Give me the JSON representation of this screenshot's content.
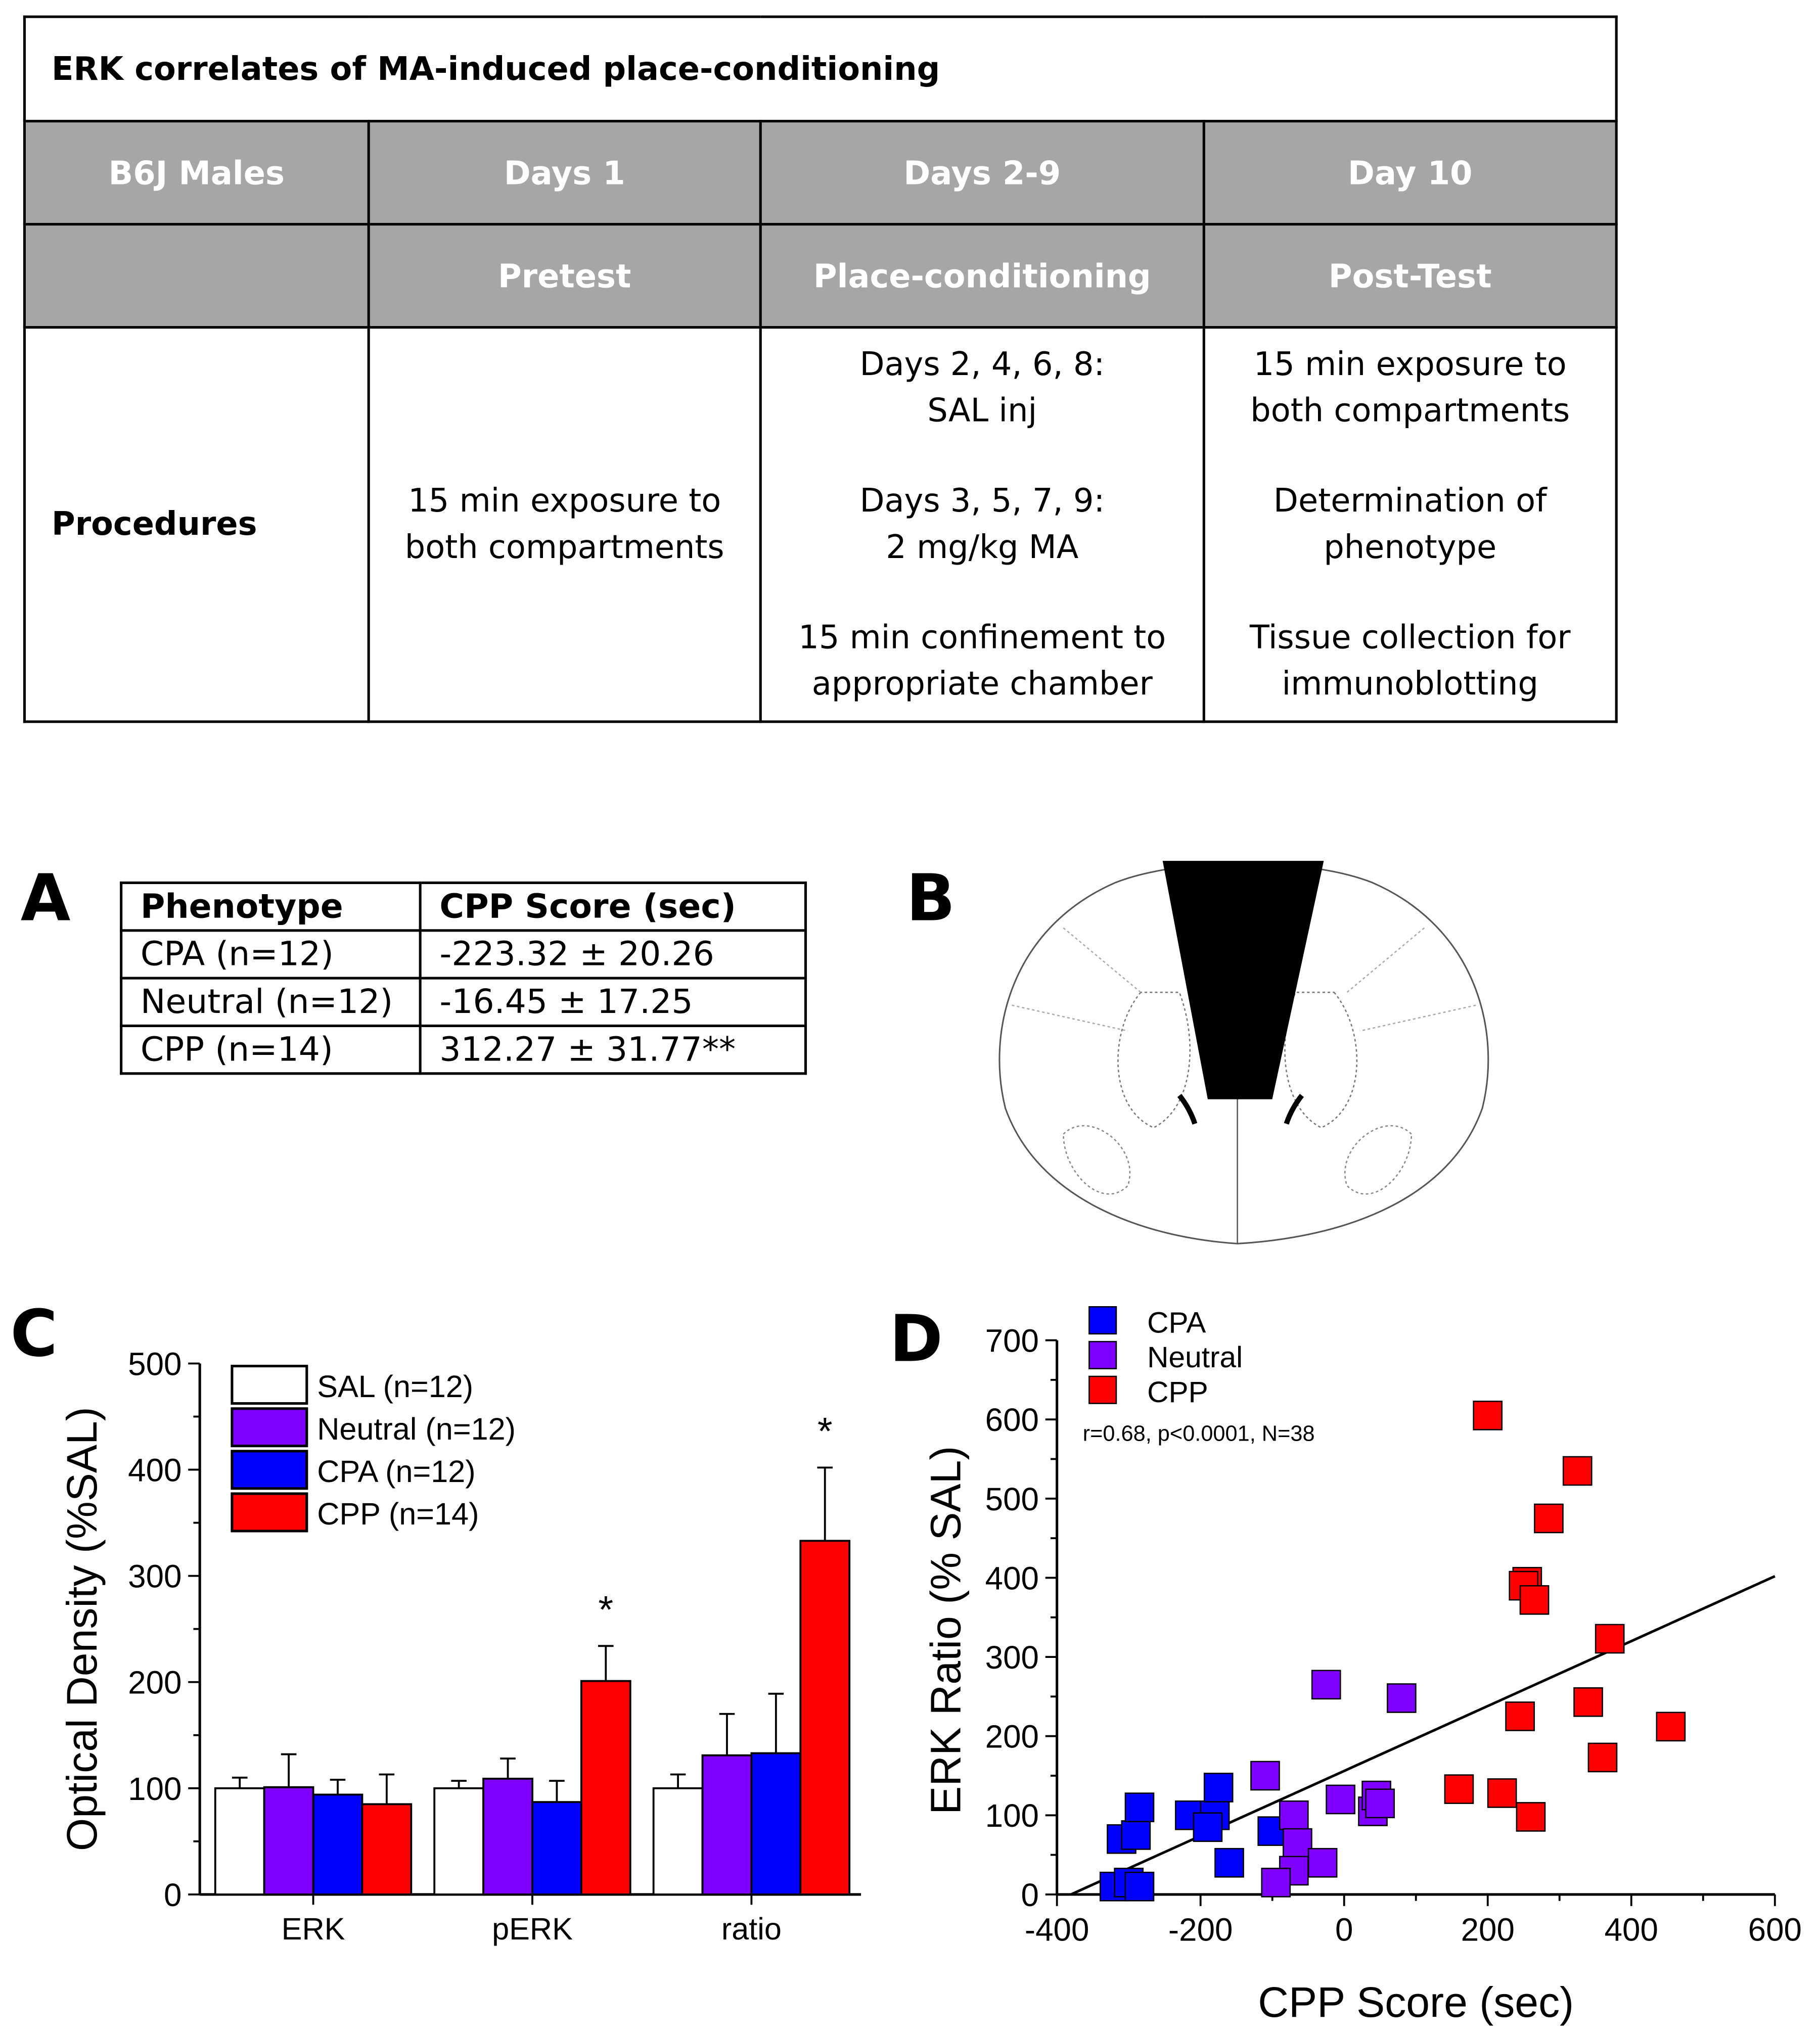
{
  "protocol": {
    "title": "ERK correlates of MA-induced place-conditioning",
    "header_row1": [
      "B6J Males",
      "Days 1",
      "Days 2-9",
      "Day 10"
    ],
    "header_row2": [
      "",
      "Pretest",
      "Place-conditioning",
      "Post-Test"
    ],
    "row_label": "Procedures",
    "pretest": [
      "15 min exposure to both compartments"
    ],
    "conditioning": [
      "Days 2, 4, 6, 8:|SAL inj",
      "Days 3, 5, 7, 9:|2 mg/kg MA",
      "15 min confinement to|appropriate chamber"
    ],
    "posttest": [
      "15 min exposure to|both compartments",
      "Determination of|phenotype",
      "Tissue collection for|immunoblotting"
    ]
  },
  "panel_labels": {
    "a": "A",
    "b": "B",
    "c": "C",
    "d": "D"
  },
  "phenotype_table": {
    "headers": [
      "Phenotype",
      "CPP Score (sec)"
    ],
    "rows": [
      [
        "CPA (n=12)",
        "-223.32 ± 20.26"
      ],
      [
        "Neutral (n=12)",
        "-16.45 ± 17.25"
      ],
      [
        "CPP (n=14)",
        "312.27 ± 31.77**"
      ]
    ]
  },
  "colors": {
    "sal": "#ffffff",
    "neutral": "#7f00ff",
    "cpa": "#0000ff",
    "cpp": "#ff0000"
  },
  "chart_data": [
    {
      "type": "bar",
      "ylabel": "Optical Density (%SAL)",
      "xlabel": "",
      "categories": [
        "ERK",
        "pERK",
        "ratio"
      ],
      "ylim": [
        0,
        500
      ],
      "yticks": [
        0,
        100,
        200,
        300,
        400,
        500
      ],
      "series": [
        {
          "name": "SAL (n=12)",
          "key": "sal",
          "values": [
            100,
            100,
            100
          ],
          "errors": [
            10,
            7,
            13
          ]
        },
        {
          "name": "Neutral (n=12)",
          "key": "neutral",
          "values": [
            101,
            109,
            131
          ],
          "errors": [
            31,
            19,
            39
          ]
        },
        {
          "name": "CPA (n=12)",
          "key": "cpa",
          "values": [
            94,
            87,
            133
          ],
          "errors": [
            14,
            20,
            56
          ]
        },
        {
          "name": "CPP (n=14)",
          "key": "cpp",
          "values": [
            85,
            201,
            333
          ],
          "errors": [
            28,
            33,
            69
          ]
        }
      ],
      "annotations": [
        {
          "category": "pERK",
          "series": "CPP (n=14)",
          "text": "*"
        },
        {
          "category": "ratio",
          "series": "CPP (n=14)",
          "text": "*"
        }
      ],
      "legend": "top-left"
    },
    {
      "type": "scatter",
      "xlabel": "CPP Score (sec)",
      "ylabel": "ERK Ratio (% SAL)",
      "xlim": [
        -400,
        600
      ],
      "ylim": [
        0,
        700
      ],
      "xticks": [
        -400,
        -200,
        0,
        200,
        400,
        600
      ],
      "yticks": [
        0,
        100,
        200,
        300,
        400,
        500,
        600,
        700
      ],
      "annotation": "r=0.68, p<0.0001, N=38",
      "legend": "top-left",
      "regression": {
        "slope": 0.41,
        "intercept": 156
      },
      "series": [
        {
          "name": "CPA",
          "key": "cpa",
          "points": [
            [
              -320,
              10
            ],
            [
              -300,
              15
            ],
            [
              -285,
              10
            ],
            [
              -310,
              70
            ],
            [
              -290,
              75
            ],
            [
              -285,
              110
            ],
            [
              -215,
              100
            ],
            [
              -180,
              100
            ],
            [
              -190,
              85
            ],
            [
              -175,
              135
            ],
            [
              -160,
              40
            ],
            [
              -100,
              80
            ]
          ]
        },
        {
          "name": "Neutral",
          "key": "neutral",
          "points": [
            [
              -110,
              150
            ],
            [
              -25,
              265
            ],
            [
              80,
              248
            ],
            [
              -70,
              100
            ],
            [
              -65,
              65
            ],
            [
              -70,
              30
            ],
            [
              -95,
              15
            ],
            [
              -30,
              40
            ],
            [
              -5,
              120
            ],
            [
              40,
              105
            ],
            [
              45,
              125
            ],
            [
              50,
              115
            ]
          ]
        },
        {
          "name": "CPP",
          "key": "cpp",
          "points": [
            [
              200,
              605
            ],
            [
              325,
              535
            ],
            [
              285,
              475
            ],
            [
              255,
              395
            ],
            [
              250,
              390
            ],
            [
              265,
              372
            ],
            [
              370,
              323
            ],
            [
              245,
              225
            ],
            [
              340,
              243
            ],
            [
              455,
              212
            ],
            [
              360,
              173
            ],
            [
              160,
              133
            ],
            [
              220,
              128
            ],
            [
              260,
              98
            ]
          ]
        }
      ]
    }
  ]
}
